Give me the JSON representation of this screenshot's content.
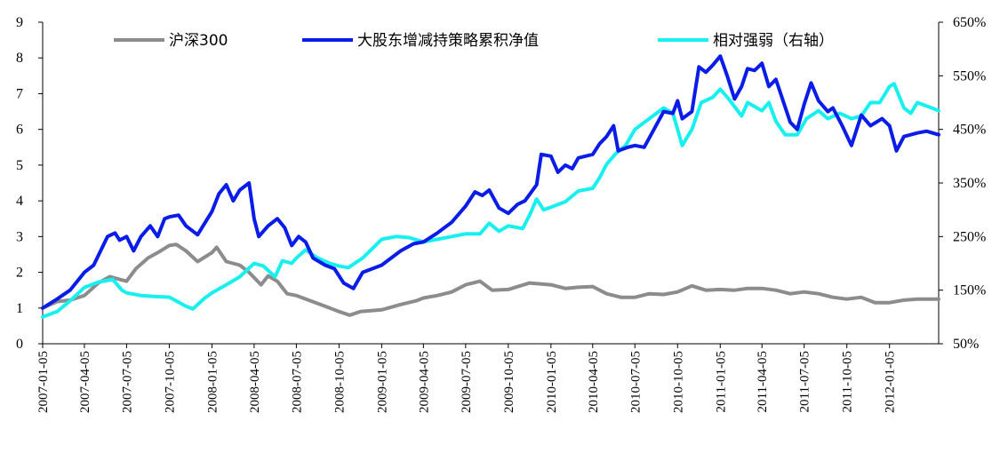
{
  "chart_data": {
    "type": "line",
    "title": "",
    "xlabel": "",
    "ylabel": "",
    "x_ticks": [
      "2007-01-05",
      "2007-04-05",
      "2007-07-05",
      "2007-10-05",
      "2008-01-05",
      "2008-04-05",
      "2008-07-05",
      "2008-10-05",
      "2009-01-05",
      "2009-04-05",
      "2009-07-05",
      "2009-10-05",
      "2010-01-05",
      "2010-04-05",
      "2010-07-05",
      "2010-10-05",
      "2011-01-05",
      "2011-04-05",
      "2011-07-05",
      "2011-10-05",
      "2012-01-05"
    ],
    "x_range": [
      "2007-01-05",
      "2012-04-20"
    ],
    "ylim_left": [
      0,
      9
    ],
    "yticks_left": [
      "0",
      "1",
      "2",
      "3",
      "4",
      "5",
      "6",
      "7",
      "8",
      "9"
    ],
    "ylim_right": [
      0.5,
      6.5
    ],
    "yticks_right": [
      "50%",
      "150%",
      "250%",
      "350%",
      "450%",
      "550%",
      "650%"
    ],
    "grid": false,
    "legend_position": "top",
    "series": [
      {
        "name": "沪深300",
        "axis": "left",
        "color": "#8c8c8c",
        "points": [
          [
            "2007-01-05",
            1.0
          ],
          [
            "2007-02-05",
            1.18
          ],
          [
            "2007-03-05",
            1.22
          ],
          [
            "2007-04-05",
            1.35
          ],
          [
            "2007-05-05",
            1.7
          ],
          [
            "2007-05-30",
            1.88
          ],
          [
            "2007-06-20",
            1.8
          ],
          [
            "2007-07-05",
            1.75
          ],
          [
            "2007-07-25",
            2.1
          ],
          [
            "2007-08-20",
            2.4
          ],
          [
            "2007-09-10",
            2.55
          ],
          [
            "2007-10-05",
            2.75
          ],
          [
            "2007-10-20",
            2.78
          ],
          [
            "2007-11-10",
            2.6
          ],
          [
            "2007-12-05",
            2.3
          ],
          [
            "2008-01-05",
            2.55
          ],
          [
            "2008-01-15",
            2.7
          ],
          [
            "2008-02-05",
            2.3
          ],
          [
            "2008-03-05",
            2.2
          ],
          [
            "2008-03-25",
            2.0
          ],
          [
            "2008-04-20",
            1.65
          ],
          [
            "2008-05-05",
            1.9
          ],
          [
            "2008-05-25",
            1.75
          ],
          [
            "2008-06-15",
            1.4
          ],
          [
            "2008-07-05",
            1.35
          ],
          [
            "2008-08-05",
            1.2
          ],
          [
            "2008-09-05",
            1.05
          ],
          [
            "2008-10-05",
            0.9
          ],
          [
            "2008-10-28",
            0.8
          ],
          [
            "2008-11-20",
            0.9
          ],
          [
            "2009-01-05",
            0.95
          ],
          [
            "2009-02-15",
            1.1
          ],
          [
            "2009-03-20",
            1.2
          ],
          [
            "2009-04-05",
            1.28
          ],
          [
            "2009-05-05",
            1.35
          ],
          [
            "2009-06-05",
            1.45
          ],
          [
            "2009-07-05",
            1.65
          ],
          [
            "2009-08-05",
            1.75
          ],
          [
            "2009-08-31",
            1.5
          ],
          [
            "2009-10-05",
            1.52
          ],
          [
            "2009-11-20",
            1.7
          ],
          [
            "2010-01-05",
            1.65
          ],
          [
            "2010-02-05",
            1.55
          ],
          [
            "2010-03-05",
            1.58
          ],
          [
            "2010-04-05",
            1.6
          ],
          [
            "2010-05-05",
            1.4
          ],
          [
            "2010-06-05",
            1.3
          ],
          [
            "2010-07-05",
            1.3
          ],
          [
            "2010-08-05",
            1.4
          ],
          [
            "2010-09-05",
            1.38
          ],
          [
            "2010-10-05",
            1.45
          ],
          [
            "2010-11-05",
            1.62
          ],
          [
            "2010-12-05",
            1.5
          ],
          [
            "2011-01-05",
            1.52
          ],
          [
            "2011-02-05",
            1.5
          ],
          [
            "2011-03-05",
            1.55
          ],
          [
            "2011-04-05",
            1.55
          ],
          [
            "2011-05-05",
            1.5
          ],
          [
            "2011-06-05",
            1.4
          ],
          [
            "2011-07-05",
            1.45
          ],
          [
            "2011-08-05",
            1.4
          ],
          [
            "2011-09-05",
            1.3
          ],
          [
            "2011-10-05",
            1.25
          ],
          [
            "2011-11-05",
            1.3
          ],
          [
            "2011-12-05",
            1.15
          ],
          [
            "2012-01-05",
            1.15
          ],
          [
            "2012-02-05",
            1.22
          ],
          [
            "2012-03-05",
            1.25
          ],
          [
            "2012-04-20",
            1.25
          ]
        ]
      },
      {
        "name": "大股东增减持策略累积净值",
        "axis": "left",
        "color": "#0a1ce8",
        "points": [
          [
            "2007-01-05",
            1.0
          ],
          [
            "2007-02-05",
            1.25
          ],
          [
            "2007-03-05",
            1.5
          ],
          [
            "2007-04-05",
            2.0
          ],
          [
            "2007-04-25",
            2.2
          ],
          [
            "2007-05-10",
            2.6
          ],
          [
            "2007-05-25",
            3.0
          ],
          [
            "2007-06-10",
            3.1
          ],
          [
            "2007-06-20",
            2.9
          ],
          [
            "2007-07-05",
            3.0
          ],
          [
            "2007-07-20",
            2.6
          ],
          [
            "2007-08-05",
            3.0
          ],
          [
            "2007-08-25",
            3.3
          ],
          [
            "2007-09-10",
            3.0
          ],
          [
            "2007-09-25",
            3.5
          ],
          [
            "2007-10-05",
            3.55
          ],
          [
            "2007-10-25",
            3.6
          ],
          [
            "2007-11-10",
            3.3
          ],
          [
            "2007-12-05",
            3.05
          ],
          [
            "2008-01-05",
            3.7
          ],
          [
            "2008-01-20",
            4.2
          ],
          [
            "2008-02-05",
            4.45
          ],
          [
            "2008-02-20",
            4.0
          ],
          [
            "2008-03-05",
            4.3
          ],
          [
            "2008-03-25",
            4.5
          ],
          [
            "2008-04-05",
            3.5
          ],
          [
            "2008-04-15",
            3.0
          ],
          [
            "2008-05-05",
            3.3
          ],
          [
            "2008-05-25",
            3.5
          ],
          [
            "2008-06-10",
            3.25
          ],
          [
            "2008-06-25",
            2.75
          ],
          [
            "2008-07-10",
            3.0
          ],
          [
            "2008-07-25",
            2.85
          ],
          [
            "2008-08-10",
            2.4
          ],
          [
            "2008-09-05",
            2.2
          ],
          [
            "2008-09-25",
            2.1
          ],
          [
            "2008-10-15",
            1.7
          ],
          [
            "2008-11-05",
            1.55
          ],
          [
            "2008-11-25",
            2.0
          ],
          [
            "2009-01-05",
            2.2
          ],
          [
            "2009-02-15",
            2.6
          ],
          [
            "2009-03-15",
            2.8
          ],
          [
            "2009-04-05",
            2.85
          ],
          [
            "2009-05-05",
            3.1
          ],
          [
            "2009-06-05",
            3.4
          ],
          [
            "2009-07-05",
            3.85
          ],
          [
            "2009-07-25",
            4.25
          ],
          [
            "2009-08-10",
            4.15
          ],
          [
            "2009-08-25",
            4.3
          ],
          [
            "2009-09-15",
            3.8
          ],
          [
            "2009-10-05",
            3.65
          ],
          [
            "2009-10-25",
            3.9
          ],
          [
            "2009-11-10",
            4.0
          ],
          [
            "2009-12-05",
            4.45
          ],
          [
            "2009-12-15",
            5.3
          ],
          [
            "2010-01-05",
            5.25
          ],
          [
            "2010-01-20",
            4.8
          ],
          [
            "2010-02-05",
            5.0
          ],
          [
            "2010-02-20",
            4.9
          ],
          [
            "2010-03-05",
            5.2
          ],
          [
            "2010-04-05",
            5.3
          ],
          [
            "2010-04-20",
            5.6
          ],
          [
            "2010-05-05",
            5.8
          ],
          [
            "2010-05-20",
            6.1
          ],
          [
            "2010-05-30",
            5.4
          ],
          [
            "2010-06-20",
            5.5
          ],
          [
            "2010-07-05",
            5.55
          ],
          [
            "2010-07-25",
            5.5
          ],
          [
            "2010-08-15",
            6.0
          ],
          [
            "2010-09-05",
            6.5
          ],
          [
            "2010-09-25",
            6.45
          ],
          [
            "2010-10-05",
            6.8
          ],
          [
            "2010-10-15",
            6.3
          ],
          [
            "2010-11-05",
            6.5
          ],
          [
            "2010-11-20",
            7.75
          ],
          [
            "2010-12-05",
            7.6
          ],
          [
            "2010-12-20",
            7.8
          ],
          [
            "2011-01-05",
            8.05
          ],
          [
            "2011-01-20",
            7.5
          ],
          [
            "2011-02-05",
            6.85
          ],
          [
            "2011-02-20",
            7.2
          ],
          [
            "2011-03-05",
            7.7
          ],
          [
            "2011-03-20",
            7.65
          ],
          [
            "2011-04-05",
            7.85
          ],
          [
            "2011-04-20",
            7.2
          ],
          [
            "2011-05-05",
            7.4
          ],
          [
            "2011-06-05",
            6.2
          ],
          [
            "2011-06-20",
            6.0
          ],
          [
            "2011-07-05",
            6.7
          ],
          [
            "2011-07-20",
            7.3
          ],
          [
            "2011-08-05",
            6.8
          ],
          [
            "2011-08-25",
            6.5
          ],
          [
            "2011-09-05",
            6.6
          ],
          [
            "2011-09-25",
            6.1
          ],
          [
            "2011-10-15",
            5.55
          ],
          [
            "2011-11-05",
            6.4
          ],
          [
            "2011-11-25",
            6.1
          ],
          [
            "2011-12-20",
            6.3
          ],
          [
            "2012-01-05",
            6.1
          ],
          [
            "2012-01-20",
            5.4
          ],
          [
            "2012-02-05",
            5.8
          ],
          [
            "2012-03-05",
            5.9
          ],
          [
            "2012-03-25",
            5.95
          ],
          [
            "2012-04-20",
            5.85
          ]
        ]
      },
      {
        "name": "相对强弱（右轴）",
        "axis": "right",
        "color": "#18f0f0",
        "points": [
          [
            "2007-01-05",
            1.0
          ],
          [
            "2007-02-05",
            1.1
          ],
          [
            "2007-03-05",
            1.3
          ],
          [
            "2007-04-05",
            1.55
          ],
          [
            "2007-05-05",
            1.65
          ],
          [
            "2007-06-05",
            1.7
          ],
          [
            "2007-06-25",
            1.5
          ],
          [
            "2007-07-05",
            1.45
          ],
          [
            "2007-08-05",
            1.4
          ],
          [
            "2007-09-05",
            1.38
          ],
          [
            "2007-10-05",
            1.37
          ],
          [
            "2007-11-10",
            1.2
          ],
          [
            "2007-11-25",
            1.15
          ],
          [
            "2007-12-20",
            1.35
          ],
          [
            "2008-01-05",
            1.45
          ],
          [
            "2008-02-05",
            1.6
          ],
          [
            "2008-03-05",
            1.75
          ],
          [
            "2008-04-05",
            2.0
          ],
          [
            "2008-04-25",
            1.95
          ],
          [
            "2008-05-20",
            1.75
          ],
          [
            "2008-06-05",
            2.05
          ],
          [
            "2008-06-25",
            2.0
          ],
          [
            "2008-07-05",
            2.1
          ],
          [
            "2008-07-25",
            2.25
          ],
          [
            "2008-08-20",
            2.1
          ],
          [
            "2008-09-15",
            2.0
          ],
          [
            "2008-10-05",
            1.95
          ],
          [
            "2008-10-25",
            1.92
          ],
          [
            "2008-11-25",
            2.1
          ],
          [
            "2009-01-05",
            2.45
          ],
          [
            "2009-02-05",
            2.5
          ],
          [
            "2009-03-05",
            2.48
          ],
          [
            "2009-04-05",
            2.4
          ],
          [
            "2009-05-05",
            2.45
          ],
          [
            "2009-06-05",
            2.5
          ],
          [
            "2009-07-05",
            2.55
          ],
          [
            "2009-08-05",
            2.55
          ],
          [
            "2009-08-25",
            2.75
          ],
          [
            "2009-09-15",
            2.6
          ],
          [
            "2009-10-05",
            2.7
          ],
          [
            "2009-11-05",
            2.65
          ],
          [
            "2009-11-20",
            2.9
          ],
          [
            "2009-12-05",
            3.2
          ],
          [
            "2009-12-20",
            3.0
          ],
          [
            "2010-01-05",
            3.05
          ],
          [
            "2010-02-05",
            3.15
          ],
          [
            "2010-03-05",
            3.35
          ],
          [
            "2010-04-05",
            3.4
          ],
          [
            "2010-04-20",
            3.6
          ],
          [
            "2010-05-05",
            3.85
          ],
          [
            "2010-05-25",
            4.05
          ],
          [
            "2010-06-15",
            4.2
          ],
          [
            "2010-07-05",
            4.5
          ],
          [
            "2010-08-05",
            4.7
          ],
          [
            "2010-09-05",
            4.9
          ],
          [
            "2010-09-25",
            4.8
          ],
          [
            "2010-10-05",
            4.5
          ],
          [
            "2010-10-15",
            4.2
          ],
          [
            "2010-11-05",
            4.5
          ],
          [
            "2010-11-25",
            5.0
          ],
          [
            "2010-12-20",
            5.1
          ],
          [
            "2011-01-05",
            5.25
          ],
          [
            "2011-01-25",
            5.05
          ],
          [
            "2011-02-20",
            4.75
          ],
          [
            "2011-03-05",
            5.0
          ],
          [
            "2011-04-05",
            4.85
          ],
          [
            "2011-04-20",
            5.0
          ],
          [
            "2011-05-05",
            4.65
          ],
          [
            "2011-05-25",
            4.4
          ],
          [
            "2011-06-20",
            4.4
          ],
          [
            "2011-07-10",
            4.7
          ],
          [
            "2011-08-05",
            4.85
          ],
          [
            "2011-08-25",
            4.7
          ],
          [
            "2011-09-20",
            4.8
          ],
          [
            "2011-10-15",
            4.7
          ],
          [
            "2011-11-05",
            4.75
          ],
          [
            "2011-11-25",
            5.0
          ],
          [
            "2011-12-15",
            5.0
          ],
          [
            "2012-01-05",
            5.3
          ],
          [
            "2012-01-15",
            5.35
          ],
          [
            "2012-02-05",
            4.9
          ],
          [
            "2012-02-20",
            4.8
          ],
          [
            "2012-03-05",
            5.0
          ],
          [
            "2012-04-05",
            4.9
          ],
          [
            "2012-04-20",
            4.85
          ]
        ]
      }
    ]
  }
}
